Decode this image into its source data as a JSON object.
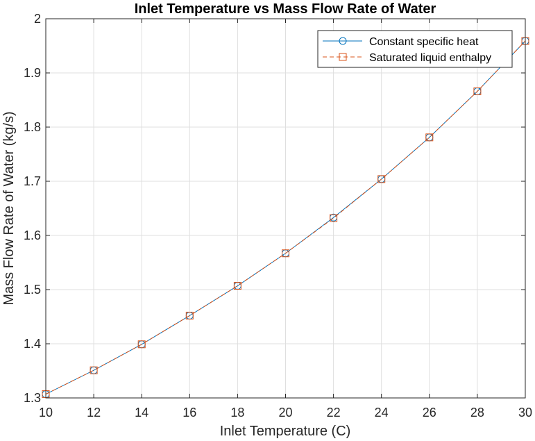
{
  "chart_data": {
    "type": "line",
    "title": "Inlet Temperature vs Mass Flow Rate of Water",
    "xlabel": "Inlet Temperature (C)",
    "ylabel": "Mass Flow Rate of Water (kg/s)",
    "xlim": [
      10,
      30
    ],
    "ylim": [
      1.3,
      2.0
    ],
    "xticks": [
      10,
      12,
      14,
      16,
      18,
      20,
      22,
      24,
      26,
      28,
      30
    ],
    "yticks": [
      1.3,
      1.4,
      1.5,
      1.6,
      1.7,
      1.8,
      1.9,
      2.0
    ],
    "xtick_labels": [
      "10",
      "12",
      "14",
      "16",
      "18",
      "20",
      "22",
      "24",
      "26",
      "28",
      "30"
    ],
    "ytick_labels": [
      "1.3",
      "1.4",
      "1.5",
      "1.6",
      "1.7",
      "1.8",
      "1.9",
      "2"
    ],
    "grid": true,
    "legend_position": "top-right",
    "x": [
      10,
      12,
      14,
      16,
      18,
      20,
      22,
      24,
      26,
      28,
      30
    ],
    "series": [
      {
        "name": "Constant specific heat",
        "color": "#0072BD",
        "line_style": "solid",
        "marker": "circle",
        "values": [
          1.307,
          1.351,
          1.399,
          1.452,
          1.507,
          1.567,
          1.633,
          1.704,
          1.781,
          1.866,
          1.959
        ]
      },
      {
        "name": "Saturated liquid enthalpy",
        "color": "#D95319",
        "line_style": "dashed",
        "marker": "square",
        "values": [
          1.307,
          1.351,
          1.399,
          1.452,
          1.507,
          1.567,
          1.632,
          1.704,
          1.781,
          1.866,
          1.959
        ]
      }
    ]
  }
}
